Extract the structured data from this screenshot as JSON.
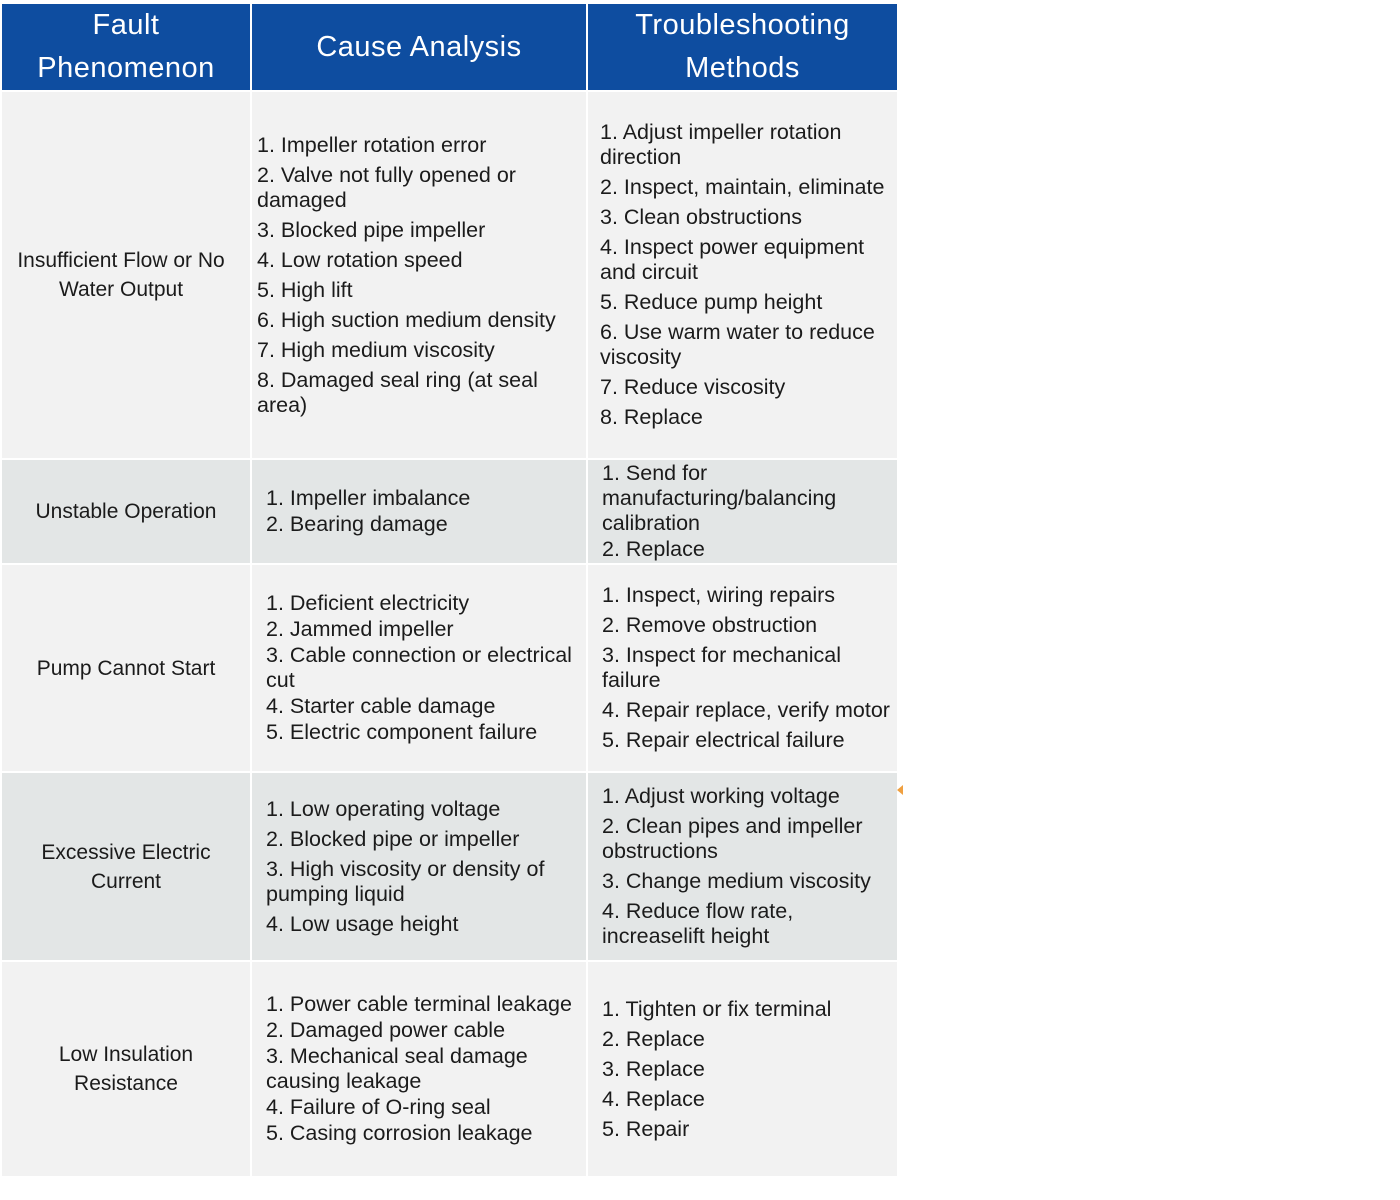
{
  "headers": [
    "Fault Phenomenon",
    "Cause Analysis",
    "Troubleshooting Methods"
  ],
  "rows": [
    {
      "fault": "Insufficient Flow or No Water Output",
      "causes": [
        "1. Impeller rotation error",
        "2. Valve not fully opened or damaged",
        "3. Blocked pipe impeller",
        "4. Low rotation speed",
        "5. High lift",
        "6. High suction medium density",
        "7. High medium viscosity",
        "8. Damaged seal ring (at seal area)"
      ],
      "methods": [
        "1. Adjust impeller rotation direction",
        "2. Inspect, maintain, eliminate",
        "3. Clean obstructions",
        "4. Inspect power equipment and circuit",
        "5. Reduce pump height",
        "6. Use warm water to reduce viscosity",
        "7. Reduce viscosity",
        "8. Replace"
      ]
    },
    {
      "fault": "Unstable Operation",
      "causes": [
        "1. Impeller imbalance",
        "2. Bearing damage"
      ],
      "methods": [
        "1. Send for manufacturing/balancing calibration",
        "2. Replace"
      ]
    },
    {
      "fault": "Pump Cannot Start",
      "causes": [
        "1. Deficient electricity",
        "2. Jammed impeller",
        "3. Cable connection or electrical cut",
        "4. Starter cable damage",
        "5. Electric component failure"
      ],
      "methods": [
        "1. Inspect, wiring repairs",
        "2. Remove obstruction",
        "3. Inspect for mechanical failure",
        "4. Repair replace, verify motor",
        "5. Repair electrical failure"
      ]
    },
    {
      "fault": "Excessive Electric Current",
      "causes": [
        "1. Low operating voltage",
        "2. Blocked pipe or impeller",
        "3. High viscosity or density of pumping liquid",
        "4. Low usage height"
      ],
      "methods": [
        "1. Adjust working voltage",
        "2. Clean pipes and impeller obstructions",
        "3. Change medium viscosity",
        "4. Reduce flow rate, increaselift height"
      ]
    },
    {
      "fault": "Low Insulation Resistance",
      "causes": [
        "1. Power cable terminal leakage",
        "2. Damaged power cable",
        "3. Mechanical seal damage causing leakage",
        "4. Failure of O-ring seal",
        "5. Casing corrosion leakage"
      ],
      "methods": [
        "1. Tighten or fix terminal",
        "2. Replace",
        "3. Replace",
        "4. Replace",
        "5. Repair"
      ]
    }
  ],
  "colors": {
    "header_bg": "#0e4da0",
    "row_light": "#f2f2f2",
    "row_dark": "#e3e6e6"
  }
}
